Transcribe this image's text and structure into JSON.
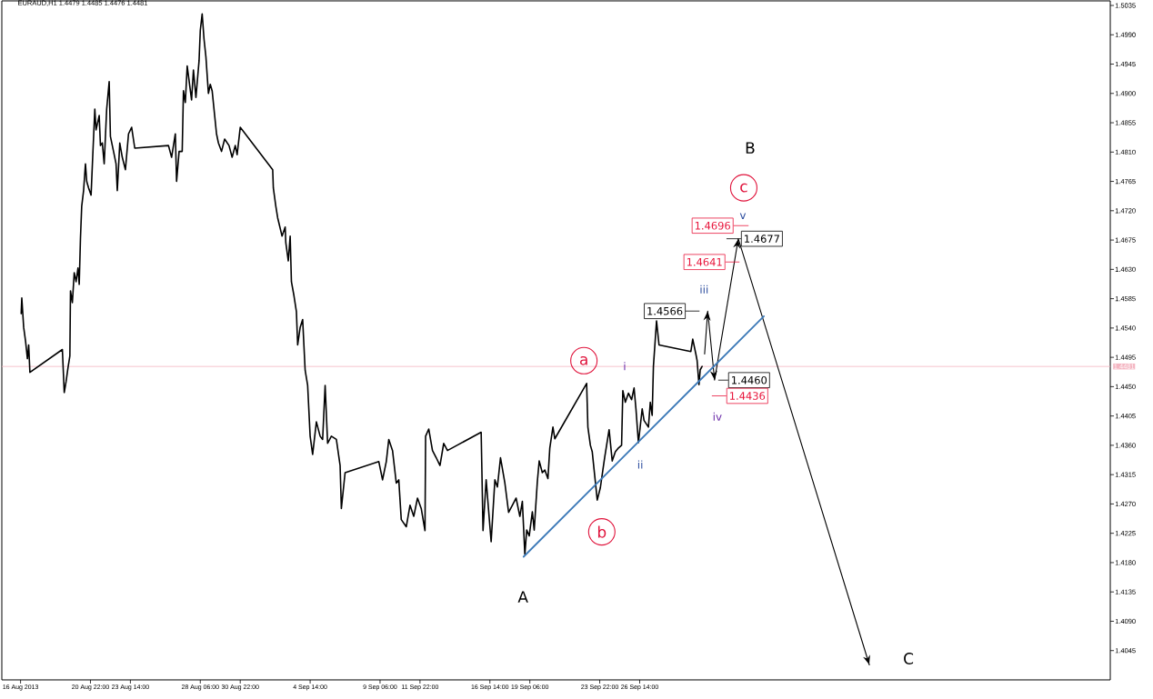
{
  "chart_data": {
    "type": "line",
    "title": "EURAUD,H1 1.4479 1.4485 1.4476 1.4481",
    "xlim": [
      "2013-08-15T00:00",
      "2013-10-28T00:00"
    ],
    "ylim": [
      1.4,
      1.5042
    ],
    "xticks": [
      {
        "value": "2013-08-16T06:00",
        "label": "16 Aug 2013"
      },
      {
        "value": "2013-08-20T22:00",
        "label": "20 Aug 22:00"
      },
      {
        "value": "2013-08-23T14:00",
        "label": "23 Aug 14:00"
      },
      {
        "value": "2013-08-28T06:00",
        "label": "28 Aug 06:00"
      },
      {
        "value": "2013-08-30T22:00",
        "label": "30 Aug 22:00"
      },
      {
        "value": "2013-09-04T14:00",
        "label": "4 Sep 14:00"
      },
      {
        "value": "2013-09-09T06:00",
        "label": "9 Sep 06:00"
      },
      {
        "value": "2013-09-11T22:00",
        "label": "11 Sep 22:00"
      },
      {
        "value": "2013-09-16T14:00",
        "label": "16 Sep 14:00"
      },
      {
        "value": "2013-09-19T06:00",
        "label": "19 Sep 06:00"
      },
      {
        "value": "2013-09-23T22:00",
        "label": "23 Sep 22:00"
      },
      {
        "value": "2013-09-26T14:00",
        "label": "26 Sep 14:00"
      }
    ],
    "yticks": [
      1.5035,
      {
        "value": 1.499,
        "label": "1.4990"
      },
      1.4945,
      {
        "value": 1.49,
        "label": "1.4900"
      },
      1.4855,
      {
        "value": 1.481,
        "label": "1.4810"
      },
      1.4765,
      {
        "value": 1.472,
        "label": "1.4720"
      },
      1.4675,
      {
        "value": 1.463,
        "label": "1.4630"
      },
      1.4585,
      {
        "value": 1.454,
        "label": "1.4540"
      },
      1.4495,
      {
        "value": 1.445,
        "label": "1.4450"
      },
      1.4405,
      {
        "value": 1.436,
        "label": "1.4360"
      },
      1.4315,
      {
        "value": 1.427,
        "label": "1.4270"
      },
      1.4225,
      {
        "value": 1.418,
        "label": "1.4180"
      },
      1.4135,
      {
        "value": 1.409,
        "label": "1.4090"
      },
      1.4045
    ],
    "series": [
      {
        "color": "#000000",
        "x": [
          "2013-08-16T07:00",
          "2013-08-16T08:00",
          "2013-08-16T11:00",
          "2013-08-16T14:00",
          "2013-08-16T17:00",
          "2013-08-16T19:00",
          "2013-08-16T21:00",
          "2013-08-19T01:00",
          "2013-08-19T04:00",
          "2013-08-19T07:00",
          "2013-08-19T10:00",
          "2013-08-19T13:00",
          "2013-08-19T14:00",
          "2013-08-19T17:00",
          "2013-08-19T20:00",
          "2013-08-19T23:00",
          "2013-08-20T02:00",
          "2013-08-20T04:00",
          "2013-08-20T06:00",
          "2013-08-20T08:00",
          "2013-08-20T11:00",
          "2013-08-20T14:00",
          "2013-08-20T16:00",
          "2013-08-20T19:00",
          "2013-08-20T23:00",
          "2013-08-21T02:00",
          "2013-08-21T05:00",
          "2013-08-21T07:00",
          "2013-08-21T12:00",
          "2013-08-21T14:00",
          "2013-08-21T17:00",
          "2013-08-21T20:00",
          "2013-08-22T00:00",
          "2013-08-22T04:00",
          "2013-08-22T06:00",
          "2013-08-22T11:00",
          "2013-08-22T15:00",
          "2013-08-22T17:00",
          "2013-08-22T21:00",
          "2013-08-23T01:00",
          "2013-08-23T06:00",
          "2013-08-23T11:00",
          "2013-08-23T16:00",
          "2013-08-23T21:00",
          "2013-08-26T03:00",
          "2013-08-26T08:00",
          "2013-08-26T14:00",
          "2013-08-26T16:00",
          "2013-08-26T20:00",
          "2013-08-27T01:00",
          "2013-08-27T03:00",
          "2013-08-27T06:00",
          "2013-08-27T09:00",
          "2013-08-27T16:00",
          "2013-08-27T19:00",
          "2013-08-27T23:00",
          "2013-08-28T04:00",
          "2013-08-28T06:00",
          "2013-08-28T09:00",
          "2013-08-28T12:00",
          "2013-08-28T15:00",
          "2013-08-28T19:00",
          "2013-08-28T22:00",
          "2013-08-29T01:00",
          "2013-08-29T05:00",
          "2013-08-29T08:00",
          "2013-08-29T11:00",
          "2013-08-29T16:00",
          "2013-08-29T21:00",
          "2013-08-30T04:00",
          "2013-08-30T09:00",
          "2013-08-30T14:00",
          "2013-08-30T17:00",
          "2013-08-30T22:00",
          "2013-09-02T02:00",
          "2013-09-02T03:00",
          "2013-09-02T07:00",
          "2013-09-02T10:00",
          "2013-09-02T17:00",
          "2013-09-02T22:00",
          "2013-09-02T23:00",
          "2013-09-03T03:00",
          "2013-09-03T06:00",
          "2013-09-03T08:00",
          "2013-09-03T12:00",
          "2013-09-03T16:00",
          "2013-09-03T18:00",
          "2013-09-03T22:00",
          "2013-09-04T02:00",
          "2013-09-04T06:00",
          "2013-09-04T10:00",
          "2013-09-04T14:00",
          "2013-09-04T18:00",
          "2013-09-05T00:00",
          "2013-09-05T06:00",
          "2013-09-05T10:00",
          "2013-09-05T14:00",
          "2013-09-05T18:00",
          "2013-09-06T00:00",
          "2013-09-06T08:00",
          "2013-09-06T14:00",
          "2013-09-06T16:00",
          "2013-09-06T22:00",
          "2013-09-09T04:00",
          "2013-09-09T10:00",
          "2013-09-09T16:00",
          "2013-09-09T20:00",
          "2013-09-10T02:00",
          "2013-09-10T08:00",
          "2013-09-10T12:00",
          "2013-09-10T16:00",
          "2013-09-11T00:00",
          "2013-09-11T06:00",
          "2013-09-11T12:00",
          "2013-09-11T18:00",
          "2013-09-12T00:00",
          "2013-09-12T06:00",
          "2013-09-12T07:00",
          "2013-09-12T12:00",
          "2013-09-12T18:00",
          "2013-09-13T00:00",
          "2013-09-13T06:00",
          "2013-09-13T12:00",
          "2013-09-13T18:00",
          "2013-09-16T00:00",
          "2013-09-16T03:00",
          "2013-09-16T08:00",
          "2013-09-16T16:00",
          "2013-09-16T22:00",
          "2013-09-17T02:00",
          "2013-09-17T07:00",
          "2013-09-17T14:00",
          "2013-09-17T20:00",
          "2013-09-18T02:00",
          "2013-09-18T08:00",
          "2013-09-18T14:00",
          "2013-09-18T18:00",
          "2013-09-18T22:00",
          "2013-09-19T01:00",
          "2013-09-19T05:00",
          "2013-09-19T10:00",
          "2013-09-19T13:00",
          "2013-09-19T18:00",
          "2013-09-19T21:00",
          "2013-09-20T02:00",
          "2013-09-20T06:00",
          "2013-09-20T11:00",
          "2013-09-20T14:00",
          "2013-09-20T19:00",
          "2013-09-20T22:00",
          "2013-09-23T01:00",
          "2013-09-23T03:00",
          "2013-09-23T07:00",
          "2013-09-23T10:00",
          "2013-09-23T13:00",
          "2013-09-23T18:00",
          "2013-09-23T23:00",
          "2013-09-24T03:00",
          "2013-09-24T06:00",
          "2013-09-24T13:00",
          "2013-09-24T18:00",
          "2013-09-24T23:00",
          "2013-09-25T04:00",
          "2013-09-25T09:00",
          "2013-09-25T11:00",
          "2013-09-25T15:00",
          "2013-09-25T20:00",
          "2013-09-26T01:00",
          "2013-09-26T05:00",
          "2013-09-26T08:00",
          "2013-09-26T12:00",
          "2013-09-26T18:00",
          "2013-09-26T21:00",
          "2013-09-27T04:00",
          "2013-09-27T07:00",
          "2013-09-27T10:00",
          "2013-09-27T12:00",
          "2013-09-27T17:00",
          "2013-09-27T21:00",
          "2013-09-30T00:00",
          "2013-09-30T03:00",
          "2013-09-30T08:00",
          "2013-09-30T10:00",
          "2013-09-30T13:00",
          "2013-09-30T15:00",
          "2013-09-30T18:00"
        ],
        "values": [
          1.4562,
          1.4586,
          1.4541,
          1.452,
          1.4493,
          1.4514,
          1.4472,
          1.4507,
          1.4441,
          1.4458,
          1.4479,
          1.4497,
          1.4597,
          1.4579,
          1.4625,
          1.4611,
          1.4632,
          1.4607,
          1.4678,
          1.4727,
          1.4751,
          1.4792,
          1.4765,
          1.4755,
          1.4744,
          1.4811,
          1.4876,
          1.4844,
          1.4866,
          1.482,
          1.4824,
          1.4792,
          1.4876,
          1.4918,
          1.4834,
          1.4811,
          1.4792,
          1.4751,
          1.4824,
          1.4802,
          1.4783,
          1.4838,
          1.4848,
          1.4816,
          1.482,
          1.4802,
          1.4838,
          1.4765,
          1.4811,
          1.4811,
          1.4904,
          1.4886,
          1.4942,
          1.489,
          1.4936,
          1.4894,
          1.495,
          1.4997,
          1.5022,
          1.4983,
          1.4956,
          1.49,
          1.4914,
          1.4904,
          1.4866,
          1.4838,
          1.4824,
          1.4811,
          1.483,
          1.482,
          1.4802,
          1.482,
          1.4806,
          1.4848,
          1.4783,
          1.4755,
          1.4727,
          1.4709,
          1.4681,
          1.4695,
          1.4671,
          1.4643,
          1.4681,
          1.4611,
          1.459,
          1.4565,
          1.4514,
          1.4541,
          1.4553,
          1.4475,
          1.4452,
          1.4374,
          1.4346,
          1.4396,
          1.4374,
          1.4369,
          1.4452,
          1.4363,
          1.4374,
          1.4369,
          1.4329,
          1.4263,
          1.4318,
          1.4335,
          1.4307,
          1.4335,
          1.4369,
          1.4352,
          1.4302,
          1.4307,
          1.4246,
          1.4235,
          1.4268,
          1.4251,
          1.4279,
          1.4263,
          1.4229,
          1.4374,
          1.4385,
          1.4352,
          1.4341,
          1.4329,
          1.4363,
          1.4352,
          1.438,
          1.4229,
          1.4307,
          1.4212,
          1.4307,
          1.4296,
          1.4341,
          1.4302,
          1.4257,
          1.4268,
          1.4279,
          1.4251,
          1.4274,
          1.4193,
          1.423,
          1.4221,
          1.4258,
          1.423,
          1.4304,
          1.4336,
          1.4318,
          1.4322,
          1.4309,
          1.4356,
          1.4388,
          1.437,
          1.4455,
          1.4388,
          1.436,
          1.435,
          1.4322,
          1.4276,
          1.4295,
          1.4322,
          1.4342,
          1.4384,
          1.4336,
          1.435,
          1.4356,
          1.436,
          1.4444,
          1.4426,
          1.444,
          1.443,
          1.4448,
          1.4416,
          1.4364,
          1.4416,
          1.4398,
          1.4388,
          1.4426,
          1.4406,
          1.4481,
          1.4551,
          1.4514,
          1.4504,
          1.4523,
          1.45,
          1.449,
          1.4453,
          1.4476,
          1.4481
        ]
      },
      {
        "color": "#000000",
        "x": [
          "2013-09-30T22:00",
          "2013-10-01T03:00",
          "2013-10-01T14:00",
          "2013-10-03T04:00",
          "2013-10-11T22:00"
        ],
        "values": [
          1.45,
          1.4566,
          1.446,
          1.4677,
          1.4023
        ]
      },
      {
        "color": "#3d7ab8",
        "x": [
          "2013-09-18T20:00",
          "2013-10-04T21:00"
        ],
        "values": [
          1.4189,
          1.4558
        ]
      }
    ],
    "ref_lines": [
      {
        "axis": "y",
        "value": 1.4481,
        "label": "1.4481",
        "color": "#f4b6c2"
      }
    ],
    "annotations": [
      {
        "text": "A",
        "x": "2013-09-18T22:00",
        "y": 1.4193
      },
      "B",
      {
        "text": "C",
        "x": "2013-10-11T22:00",
        "y": 1.4023
      },
      "a",
      {
        "text": "b",
        "x": "2013-09-23T18:00",
        "y": 1.4276
      },
      "c",
      "i",
      {
        "text": "ii",
        "x": "2013-09-26T12:00",
        "y": 1.4364
      },
      "iii",
      "iv",
      {
        "text": "v",
        "x": "2013-10-03T04:00",
        "y": 1.4677
      },
      "1.4566",
      {
        "text": "1.4677",
        "x": "2013-10-03T04:00",
        "y": 1.4677
      },
      {
        "text": "1.4460",
        "x": "2013-10-01T14:00",
        "y": 1.446
      },
      "1.4696",
      "1.4641",
      "1.4436"
    ]
  }
}
